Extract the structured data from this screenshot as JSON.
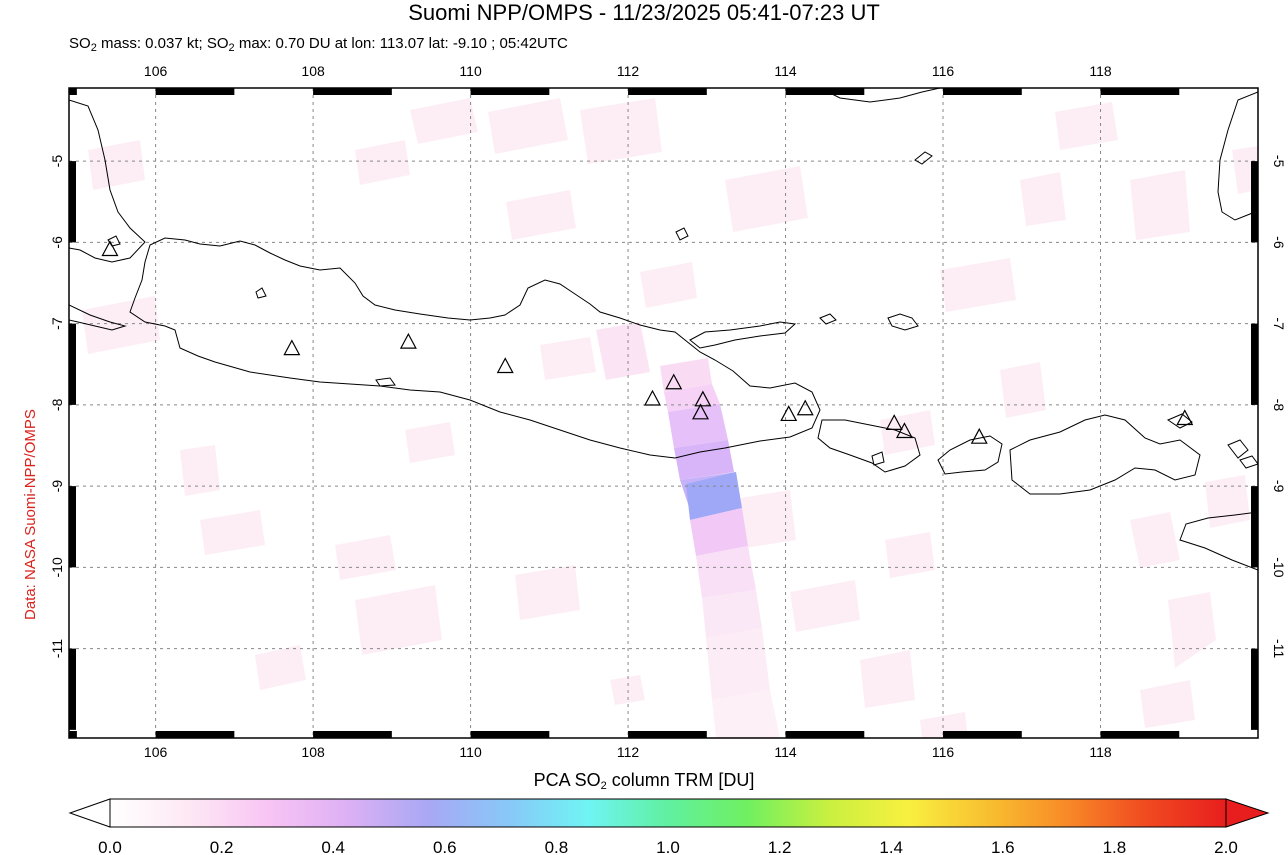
{
  "header": {
    "title": "Suomi NPP/OMPS - 11/23/2025 05:41-07:23 UT",
    "sub_mass_prefix": "SO",
    "sub_mass_sub": "2",
    "sub_mass_text": " mass: 0.037 kt; SO",
    "sub_max_sub": "2",
    "sub_max_text": " max: 0.70 DU at lon: 113.07 lat: -9.10 ; 05:42UTC"
  },
  "credit": "Data: NASA Suomi-NPP/OMPS",
  "map": {
    "lon_range": [
      104.9,
      120.0
    ],
    "lat_range": [
      -12.1,
      -4.1
    ],
    "lon_ticks": [
      "106",
      "108",
      "110",
      "112",
      "114",
      "116",
      "118"
    ],
    "lat_ticks": [
      "-5",
      "-6",
      "-7",
      "-8",
      "-9",
      "-10",
      "-11"
    ],
    "grid": true,
    "volcanoes": [
      {
        "lon": 105.42,
        "lat": -6.1
      },
      {
        "lon": 107.73,
        "lat": -7.32
      },
      {
        "lon": 109.21,
        "lat": -7.24
      },
      {
        "lon": 110.44,
        "lat": -7.54
      },
      {
        "lon": 112.31,
        "lat": -7.94
      },
      {
        "lon": 112.58,
        "lat": -7.74
      },
      {
        "lon": 112.95,
        "lat": -7.95
      },
      {
        "lon": 112.92,
        "lat": -8.11
      },
      {
        "lon": 114.04,
        "lat": -8.13
      },
      {
        "lon": 114.25,
        "lat": -8.06
      },
      {
        "lon": 115.38,
        "lat": -8.24
      },
      {
        "lon": 115.51,
        "lat": -8.34
      },
      {
        "lon": 116.46,
        "lat": -8.41
      },
      {
        "lon": 119.07,
        "lat": -8.18
      }
    ]
  },
  "colorbar": {
    "title_prefix": "PCA SO",
    "title_sub": "2",
    "title_suffix": " column TRM [DU]",
    "ticks": [
      "0.0",
      "0.2",
      "0.4",
      "0.6",
      "0.8",
      "1.0",
      "1.2",
      "1.4",
      "1.6",
      "1.8",
      "2.0"
    ],
    "colors": [
      "#ffffff",
      "#fde8f4",
      "#f8c4f4",
      "#dcb0f4",
      "#a8a8f4",
      "#88c8f8",
      "#70f4f4",
      "#60f0a0",
      "#70f060",
      "#c8f040",
      "#f8f040",
      "#f8c030",
      "#f88a28",
      "#f04a20",
      "#e81e1e"
    ]
  }
}
